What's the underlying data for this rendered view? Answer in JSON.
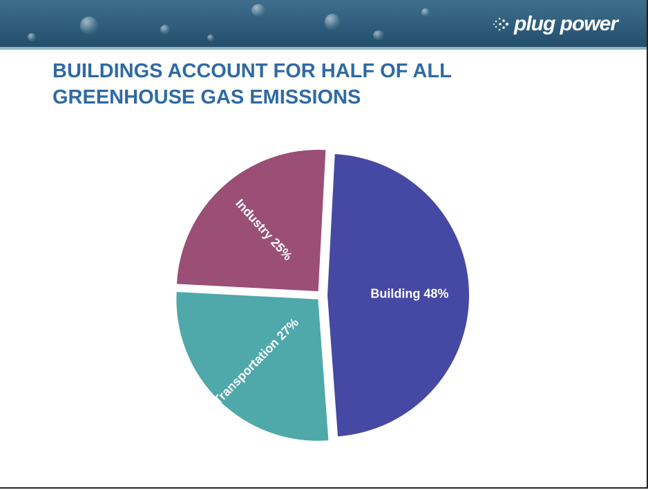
{
  "header": {
    "logo_text": "plug power",
    "logo_icon": "starburst-icon"
  },
  "title": {
    "line1": "BUILDINGS ACCOUNT FOR HALF OF ALL",
    "line2": "GREENHOUSE GAS EMISSIONS"
  },
  "chart_data": {
    "type": "pie",
    "title": "BUILDINGS ACCOUNT FOR HALF OF ALL GREENHOUSE GAS EMISSIONS",
    "slices": [
      {
        "name": "Building",
        "value": 48,
        "label": "Building 48%",
        "color": "#4649a3"
      },
      {
        "name": "Transportation",
        "value": 27,
        "label": "Transportation 27%",
        "color": "#4fa8aa"
      },
      {
        "name": "Industry",
        "value": 25,
        "label": "Industry 25%",
        "color": "#9b4e76"
      }
    ],
    "legend": "none"
  }
}
